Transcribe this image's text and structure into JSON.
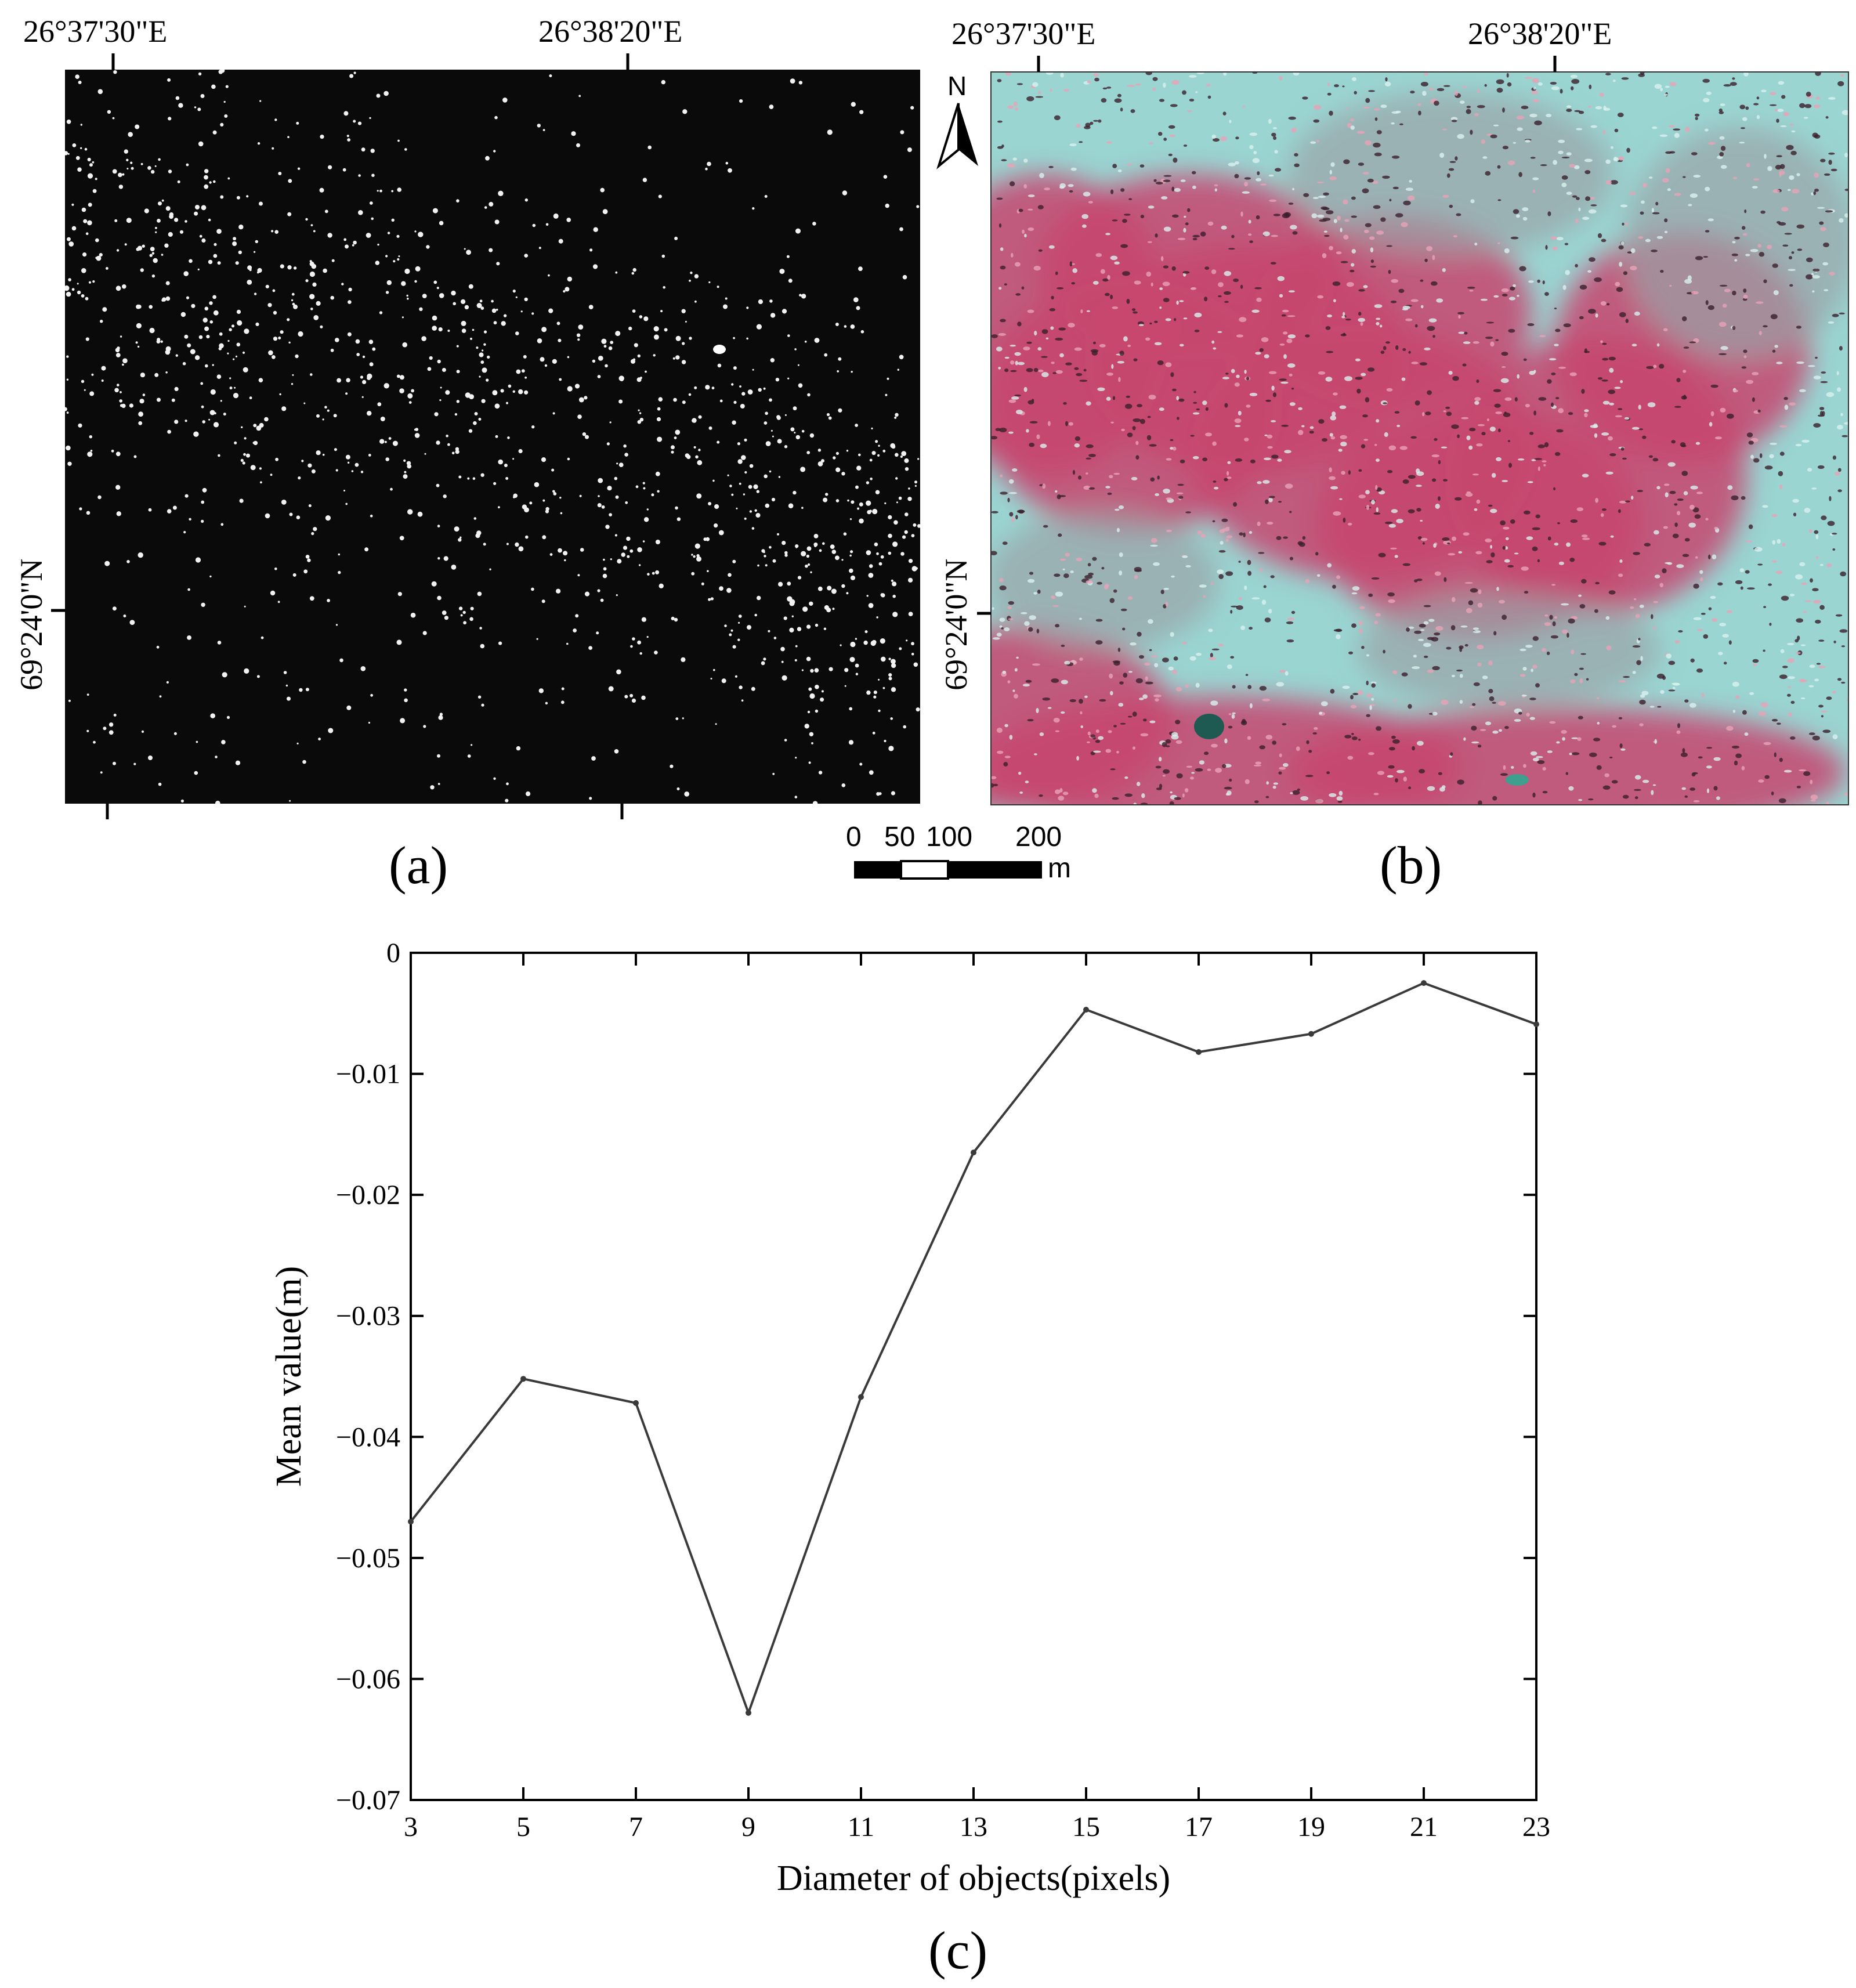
{
  "panel_a": {
    "label": "(a)",
    "top_lon_labels": [
      "26°37'30\"E",
      "26°38'20\"E"
    ],
    "left_lat_label": "69°24'0\"N",
    "background": "#0a0a0a",
    "dot_color": "#f2f2f2"
  },
  "panel_b": {
    "label": "(b)",
    "top_lon_labels": [
      "26°37'30\"E",
      "26°38'20\"E"
    ],
    "left_lat_label": "69°24'0\"N",
    "colors": {
      "cyan": "#7fd3d3",
      "pink": "#c7476f",
      "dark": "#3a1f2c",
      "gray": "#9aa3a6"
    }
  },
  "north_arrow": {
    "letter": "N"
  },
  "scale_bar": {
    "labels": [
      "0",
      "50",
      "100",
      "200"
    ],
    "unit": "m"
  },
  "panel_c": {
    "label": "(c)"
  },
  "chart_data": {
    "type": "line",
    "x": [
      3,
      5,
      7,
      9,
      11,
      13,
      15,
      17,
      19,
      21,
      23
    ],
    "series": [
      {
        "values": [
          -0.047,
          -0.0352,
          -0.0372,
          -0.0628,
          -0.0367,
          -0.0165,
          -0.0047,
          -0.0082,
          -0.0067,
          -0.0025,
          -0.0059
        ]
      }
    ],
    "xlabel": "Diameter of objects(pixels)",
    "ylabel": "Mean value(m)",
    "xlim": [
      3,
      23
    ],
    "ylim": [
      -0.07,
      0
    ],
    "xticks": [
      "3",
      "5",
      "7",
      "9",
      "11",
      "13",
      "15",
      "17",
      "19",
      "21",
      "23"
    ],
    "yticks": [
      "0",
      "−0.01",
      "−0.02",
      "−0.03",
      "−0.04",
      "−0.05",
      "−0.06",
      "−0.07"
    ],
    "grid": false,
    "line_color": "#3a3a3a"
  }
}
